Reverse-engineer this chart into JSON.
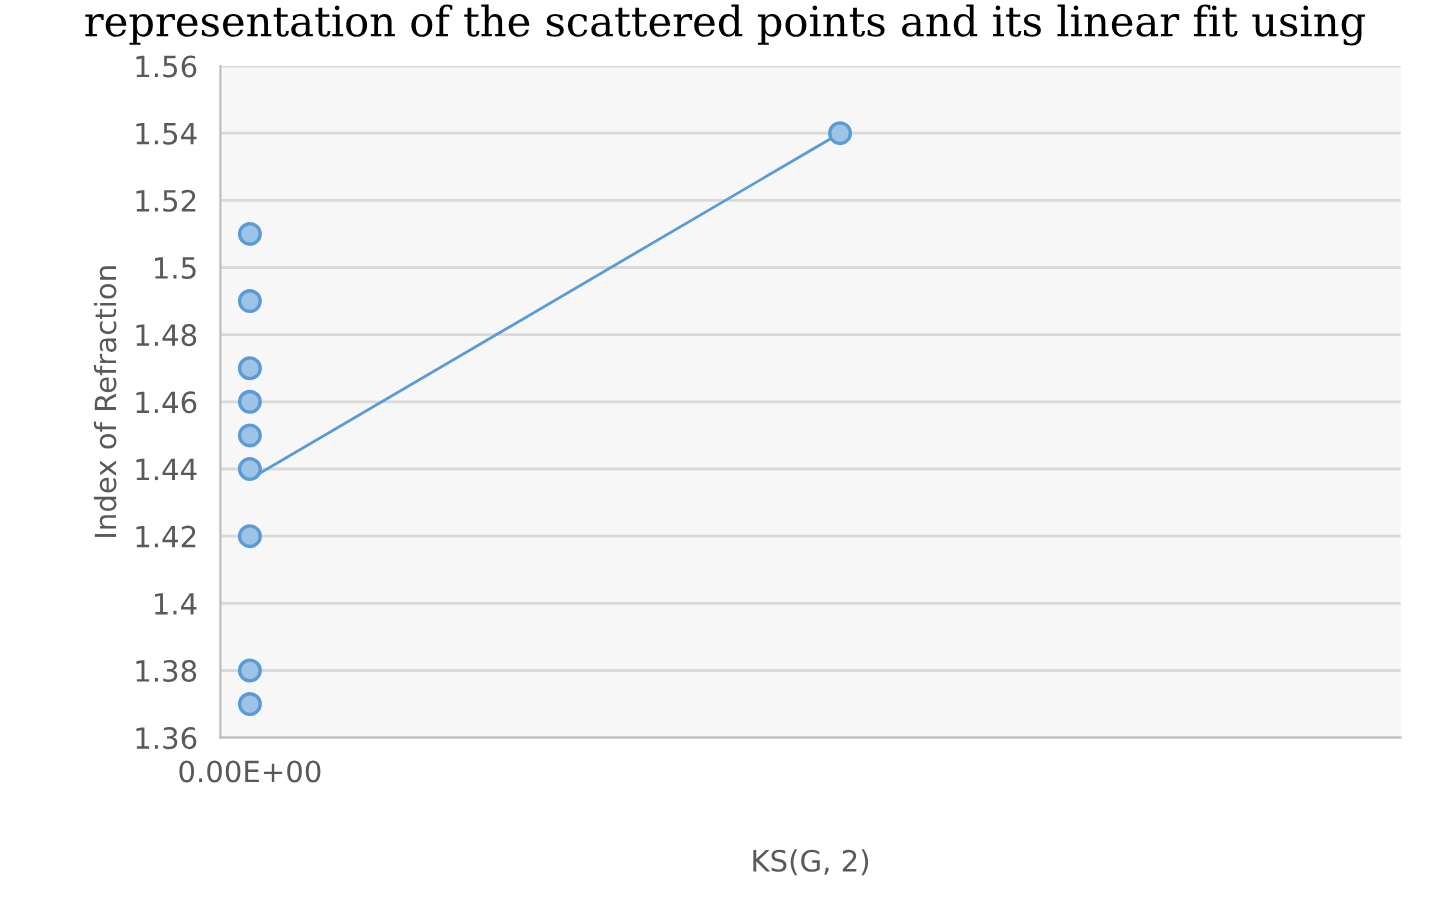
{
  "chart_data": {
    "type": "scatter",
    "xlabel": "KS(G, 2)",
    "ylabel": "Index of Refraction",
    "annotations": [
      "representation of the scattered points and its linear fit using"
    ],
    "categories": [
      "0.00E+00",
      null,
      null,
      null,
      null,
      null,
      null,
      null,
      null,
      null,
      null,
      null,
      null,
      null,
      null,
      null,
      null,
      null,
      null,
      null
    ],
    "series": [
      {
        "color": "#5b9bd5",
        "values": [
          1.51,
          null,
          null,
          null,
          null,
          null,
          null,
          null,
          null,
          null,
          1.54,
          null,
          null,
          null,
          null,
          null,
          null,
          null,
          null,
          null
        ]
      },
      {
        "color": "#5b9bd5",
        "values": [
          1.49,
          null,
          null,
          null,
          null,
          null,
          null,
          null,
          null,
          null,
          null,
          null,
          null,
          null,
          null,
          null,
          null,
          null,
          null,
          null
        ]
      },
      {
        "color": "#5b9bd5",
        "values": [
          1.47,
          null,
          null,
          null,
          null,
          null,
          null,
          null,
          null,
          null,
          null,
          null,
          null,
          null,
          null,
          null,
          null,
          null,
          null,
          null
        ]
      },
      {
        "color": "#5b9bd5",
        "values": [
          1.46,
          null,
          null,
          null,
          null,
          null,
          null,
          null,
          null,
          null,
          null,
          null,
          null,
          null,
          null,
          null,
          null,
          null,
          null,
          null
        ]
      },
      {
        "color": "#5b9bd5",
        "values": [
          1.45,
          null,
          null,
          null,
          null,
          null,
          null,
          null,
          null,
          null,
          null,
          null,
          null,
          null,
          null,
          null,
          null,
          null,
          null,
          null
        ]
      },
      {
        "color": "#5b9bd5",
        "values": [
          1.44,
          null,
          null,
          null,
          null,
          null,
          null,
          null,
          null,
          null,
          null,
          null,
          null,
          null,
          null,
          null,
          null,
          null,
          null,
          null
        ]
      },
      {
        "color": "#5b9bd5",
        "values": [
          1.42,
          null,
          null,
          null,
          null,
          null,
          null,
          null,
          null,
          null,
          null,
          null,
          null,
          null,
          null,
          null,
          null,
          null,
          null,
          null
        ]
      },
      {
        "color": "#5b9bd5",
        "values": [
          1.38,
          null,
          null,
          null,
          null,
          null,
          null,
          null,
          null,
          null,
          null,
          null,
          null,
          null,
          null,
          null,
          null,
          null,
          null,
          null
        ]
      },
      {
        "color": "#5b9bd5",
        "values": [
          1.37,
          null,
          null,
          null,
          null,
          null,
          null,
          null,
          null,
          null,
          null,
          null,
          null,
          null,
          null,
          null,
          null,
          null,
          null,
          null
        ]
      },
      {
        "type": "line",
        "marker": "none",
        "color": "#5b9bd5",
        "values": [
          1.437,
          null,
          null,
          null,
          null,
          null,
          null,
          null,
          null,
          null,
          1.54,
          null,
          null,
          null,
          null,
          null,
          null,
          null,
          null,
          null
        ]
      }
    ],
    "ylim": [
      1.36,
      1.56
    ],
    "yticks": [
      1.36,
      1.38,
      1.4,
      1.42,
      1.44,
      1.46,
      1.48,
      1.5,
      1.52,
      1.54,
      1.56
    ],
    "grid": "y",
    "legend": false,
    "marker": "circle"
  }
}
